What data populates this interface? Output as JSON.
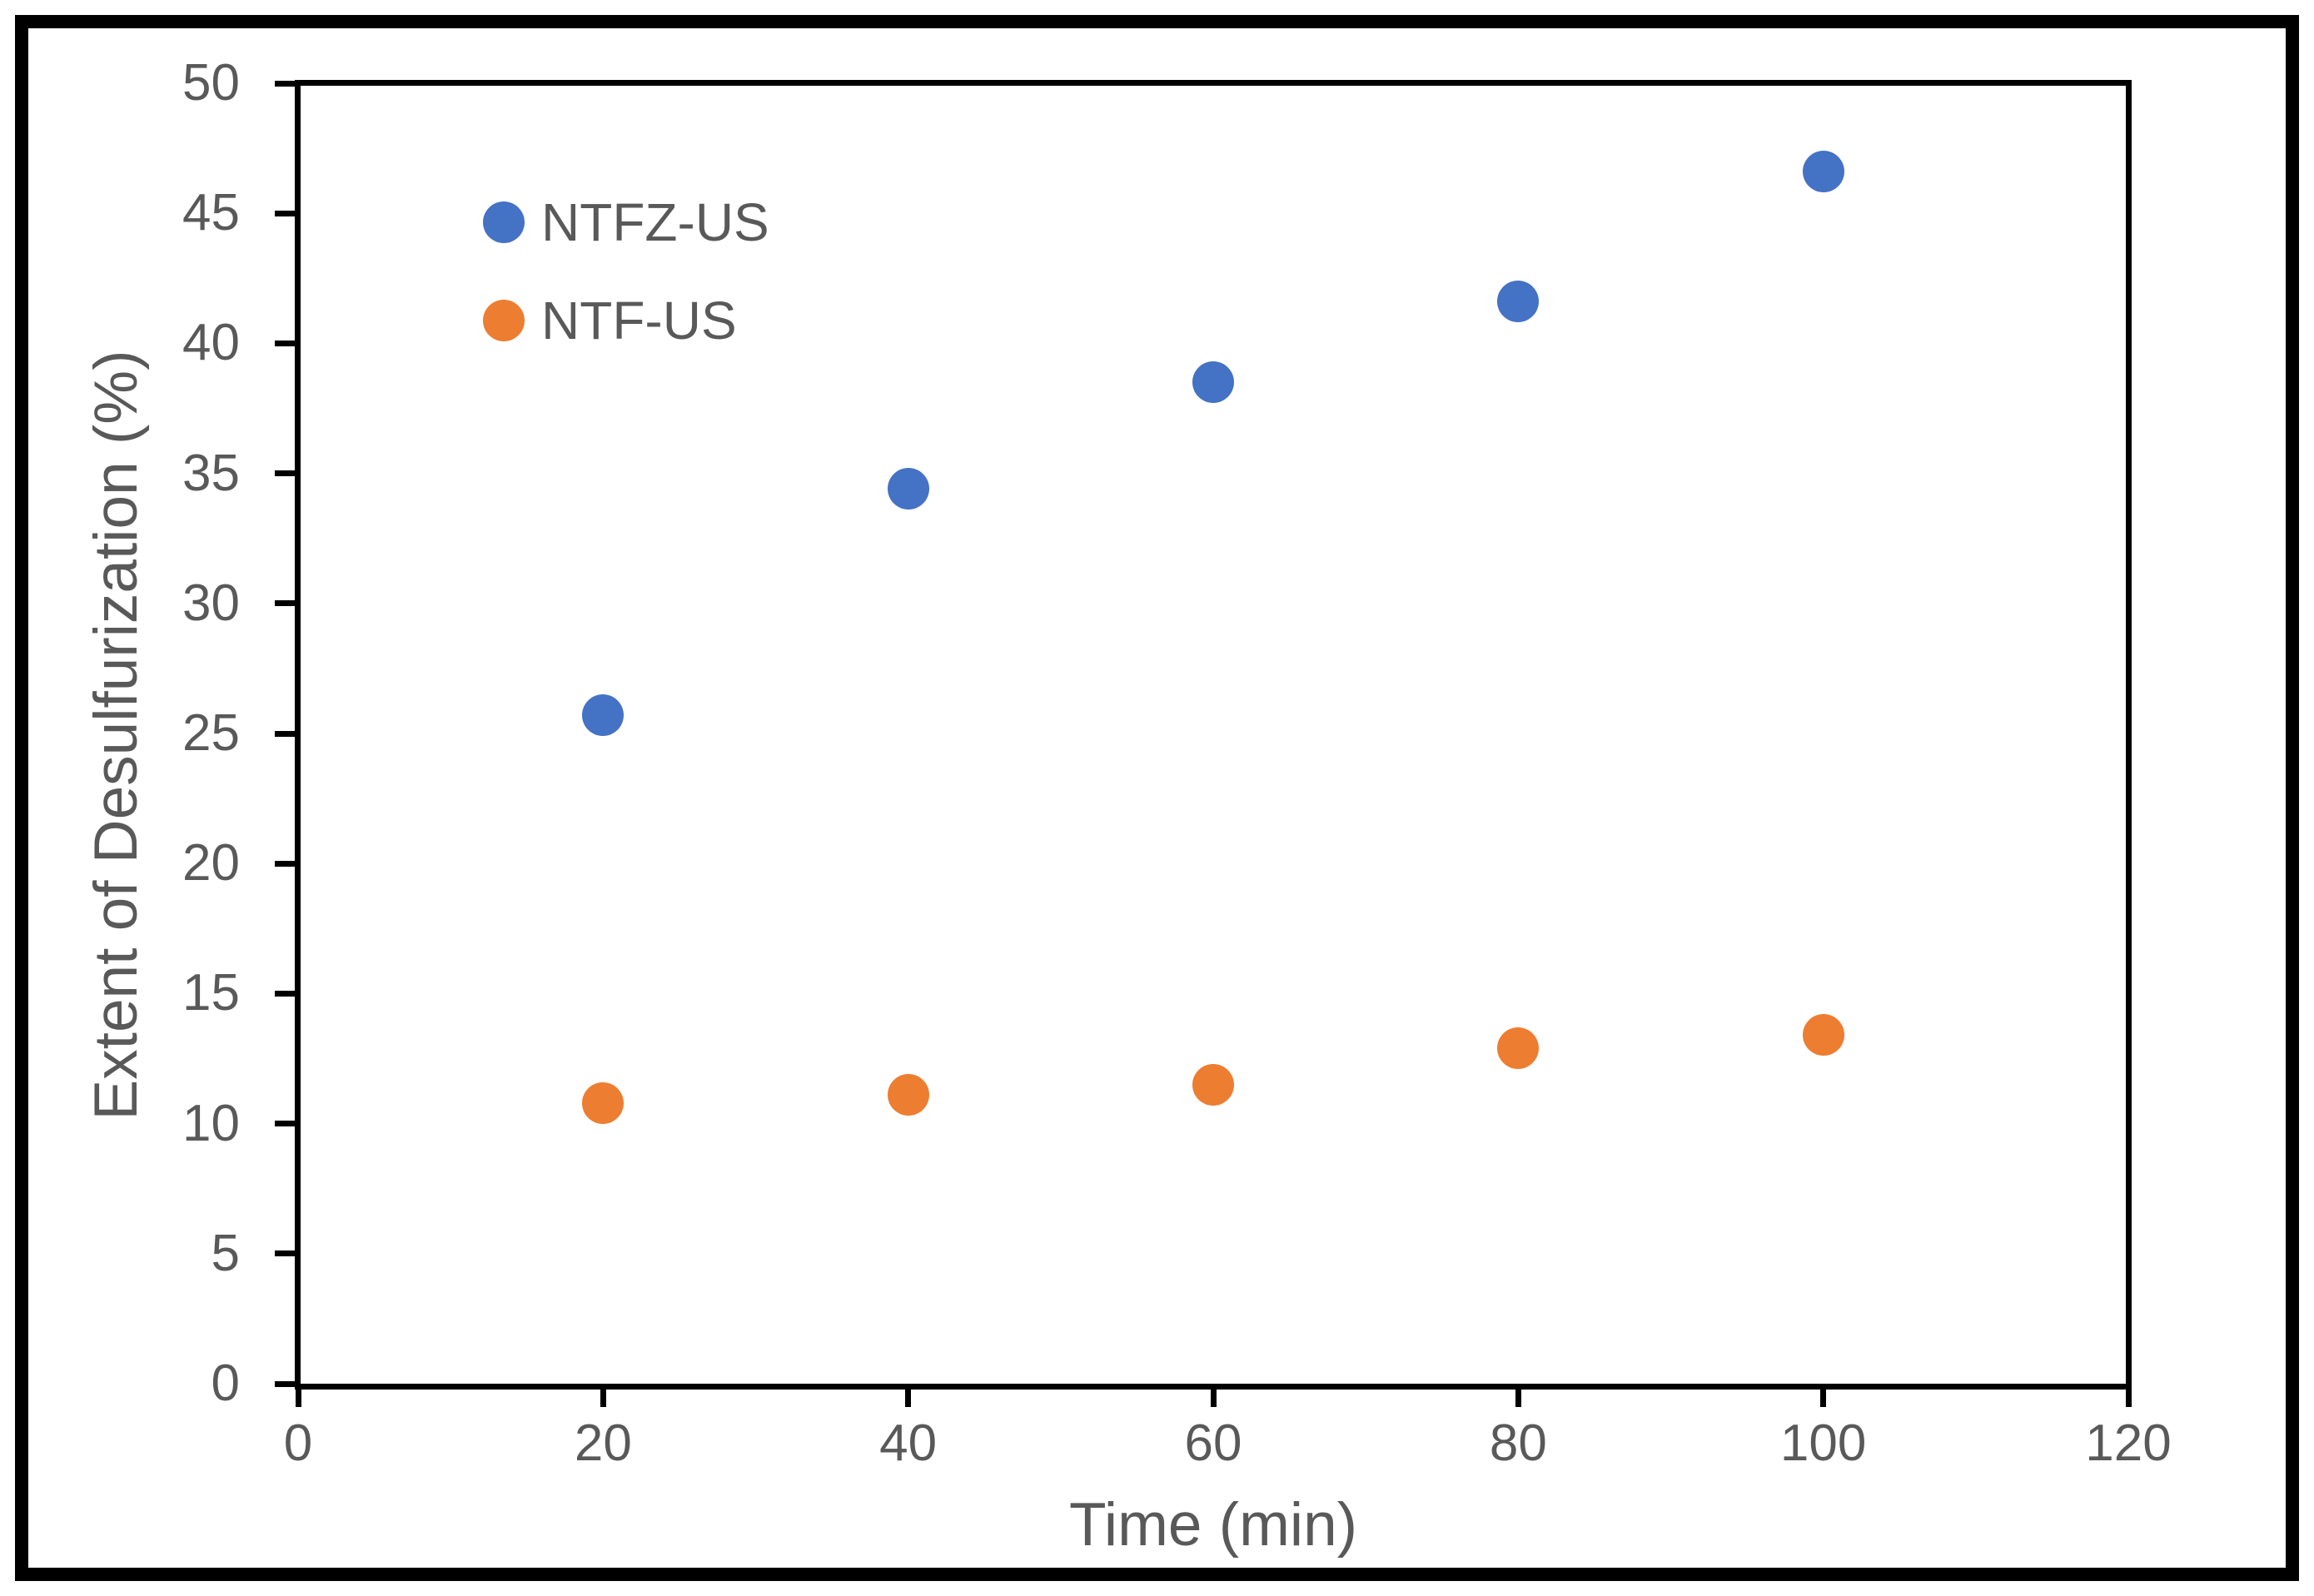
{
  "chart_data": {
    "type": "scatter",
    "title": "",
    "xlabel": "Time (min)",
    "ylabel": "Extent of Desulfurization (%)",
    "xlim": [
      0,
      120
    ],
    "ylim": [
      0,
      50
    ],
    "x_ticks": [
      "0",
      "20",
      "40",
      "60",
      "80",
      "100",
      "120"
    ],
    "y_ticks": [
      "0",
      "5",
      "10",
      "15",
      "20",
      "25",
      "30",
      "35",
      "40",
      "45",
      "50"
    ],
    "grid": false,
    "legend_position": "inside-top-left",
    "x": [
      20,
      40,
      60,
      80,
      100
    ],
    "series": [
      {
        "name": "NTFZ-US",
        "color": "#4472C4",
        "values": [
          25.7,
          34.4,
          38.5,
          41.6,
          46.6
        ]
      },
      {
        "name": "NTF-US",
        "color": "#ED7D31",
        "values": [
          10.8,
          11.1,
          11.5,
          12.9,
          13.4
        ]
      }
    ]
  },
  "styles": {
    "axis_color": "#000000",
    "border_color": "#000000",
    "tick_label_color": "#595959",
    "axis_title_color": "#595959",
    "legend_text_color": "#595959",
    "background": "#ffffff"
  }
}
